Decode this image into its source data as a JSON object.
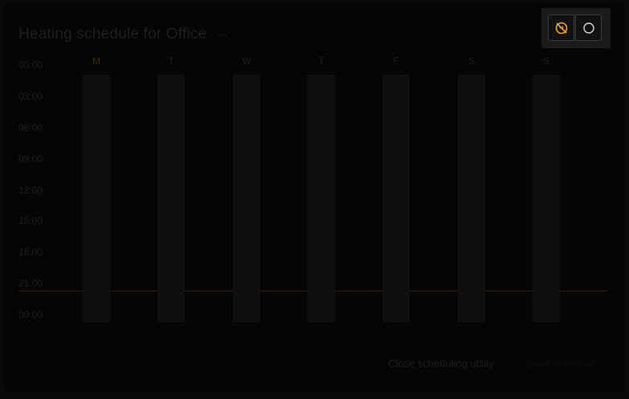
{
  "dialog": {
    "title": "Heating schedule for Office",
    "menu_glyph": "⋯"
  },
  "toolbar": {
    "buttons": [
      {
        "icon": "heating-off-icon",
        "active": true
      },
      {
        "icon": "circle-icon",
        "active": false
      }
    ]
  },
  "schedule": {
    "days": [
      "M",
      "T",
      "W",
      "T",
      "F",
      "S",
      "S"
    ],
    "active_day_index": 0,
    "times": [
      "00:00",
      "03:00",
      "06:00",
      "09:00",
      "12:00",
      "15:00",
      "18:00",
      "21:00",
      "00:00"
    ]
  },
  "footer": {
    "close_label": "Close scheduling utility",
    "save_label": "Save schedule"
  },
  "colors": {
    "accent": "#f5a524",
    "text_dim": "#1e1e1e"
  }
}
